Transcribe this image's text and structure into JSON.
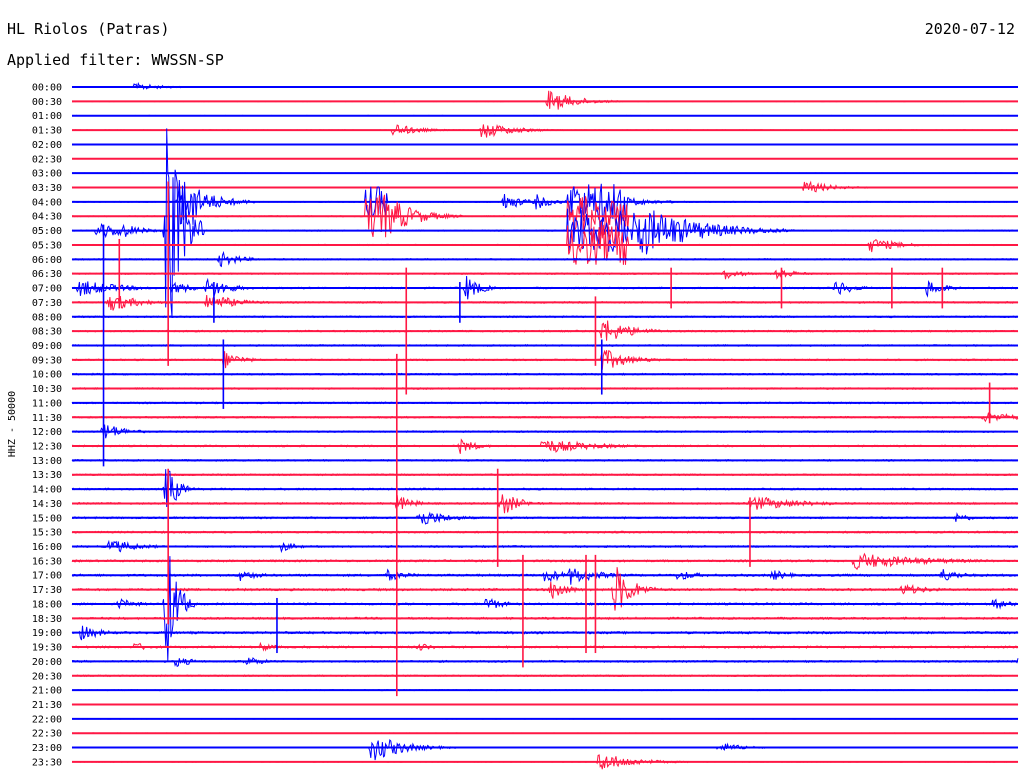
{
  "header": {
    "station": "HL Riolos (Patras)",
    "date": "2020-07-12",
    "filter_label": "Applied filter: WWSSN-SP"
  },
  "chart_data": {
    "type": "line",
    "title": "HL Riolos (Patras)",
    "subtitle": "Applied filter: WWSSN-SP",
    "ylabel": "HHZ - 50000",
    "xlabel": "",
    "date": "2020-07-12",
    "colors": {
      "even_trace": "#0000ff",
      "odd_trace": "#ff1744"
    },
    "rows": [
      "00:00",
      "00:30",
      "01:00",
      "01:30",
      "02:00",
      "02:30",
      "03:00",
      "03:30",
      "04:00",
      "04:30",
      "05:00",
      "05:30",
      "06:00",
      "06:30",
      "07:00",
      "07:30",
      "08:00",
      "08:30",
      "09:00",
      "09:30",
      "10:00",
      "10:30",
      "11:00",
      "11:30",
      "12:00",
      "12:30",
      "13:00",
      "13:30",
      "14:00",
      "14:30",
      "15:00",
      "15:30",
      "16:00",
      "16:30",
      "17:00",
      "17:30",
      "18:00",
      "18:30",
      "19:00",
      "19:30",
      "20:00",
      "20:30",
      "21:00",
      "21:30",
      "22:00",
      "22:30",
      "23:00",
      "23:30"
    ],
    "row_noise_level": [
      0.3,
      0.3,
      0.3,
      0.3,
      0.25,
      0.25,
      0.3,
      0.4,
      0.5,
      0.5,
      0.6,
      0.6,
      0.7,
      0.7,
      0.8,
      0.8,
      0.8,
      0.8,
      0.8,
      0.8,
      0.8,
      0.8,
      0.8,
      0.8,
      0.8,
      0.8,
      0.8,
      0.8,
      0.9,
      0.9,
      0.9,
      0.9,
      0.9,
      1.0,
      1.1,
      1.1,
      1.0,
      1.0,
      1.1,
      1.0,
      0.9,
      0.7,
      0.5,
      0.4,
      0.3,
      0.3,
      0.3,
      0.3
    ],
    "events": [
      {
        "row": 0,
        "minute": 2.0,
        "amp": 4,
        "dur": 0.8
      },
      {
        "row": 1,
        "minute": 15.1,
        "amp": 12,
        "dur": 0.8
      },
      {
        "row": 3,
        "minute": 10.2,
        "amp": 7,
        "dur": 0.7
      },
      {
        "row": 3,
        "minute": 13.0,
        "amp": 9,
        "dur": 0.9
      },
      {
        "row": 7,
        "minute": 23.2,
        "amp": 7,
        "dur": 0.8
      },
      {
        "row": 8,
        "minute": 3.4,
        "amp": 28,
        "dur": 0.8
      },
      {
        "row": 8,
        "minute": 13.7,
        "amp": 10,
        "dur": 0.5
      },
      {
        "row": 8,
        "minute": 14.7,
        "amp": 8,
        "dur": 0.5
      },
      {
        "row": 8,
        "minute": 16.2,
        "amp": 8,
        "dur": 0.5
      },
      {
        "row": 8,
        "minute": 16.8,
        "amp": 10,
        "dur": 1.0
      },
      {
        "row": 9,
        "minute": 10.0,
        "amp": 22,
        "dur": 0.8
      },
      {
        "row": 10,
        "minute": 0.8,
        "amp": 10,
        "dur": 0.8
      },
      {
        "row": 10,
        "minute": 1.5,
        "amp": 9,
        "dur": 0.6
      },
      {
        "row": 10,
        "minute": 3.0,
        "amp": 140,
        "dur": 0.4
      },
      {
        "row": 10,
        "minute": 17.8,
        "amp": 30,
        "dur": 1.7
      },
      {
        "row": 11,
        "minute": 25.3,
        "amp": 8,
        "dur": 0.8
      },
      {
        "row": 12,
        "minute": 4.7,
        "amp": 8,
        "dur": 0.6
      },
      {
        "row": 13,
        "minute": 20.7,
        "amp": 6,
        "dur": 0.5
      },
      {
        "row": 13,
        "minute": 22.3,
        "amp": 8,
        "dur": 0.5
      },
      {
        "row": 14,
        "minute": 0.2,
        "amp": 9,
        "dur": 1.2
      },
      {
        "row": 14,
        "minute": 3.2,
        "amp": 8,
        "dur": 0.5
      },
      {
        "row": 14,
        "minute": 4.3,
        "amp": 12,
        "dur": 0.6
      },
      {
        "row": 14,
        "minute": 12.5,
        "amp": 14,
        "dur": 0.4
      },
      {
        "row": 14,
        "minute": 24.2,
        "amp": 9,
        "dur": 0.5
      },
      {
        "row": 14,
        "minute": 27.1,
        "amp": 9,
        "dur": 0.5
      },
      {
        "row": 15,
        "minute": 1.2,
        "amp": 10,
        "dur": 0.8
      },
      {
        "row": 15,
        "minute": 4.3,
        "amp": 10,
        "dur": 0.8
      },
      {
        "row": 17,
        "minute": 16.8,
        "amp": 14,
        "dur": 0.8
      },
      {
        "row": 19,
        "minute": 4.8,
        "amp": 10,
        "dur": 0.5
      },
      {
        "row": 19,
        "minute": 16.8,
        "amp": 12,
        "dur": 0.8
      },
      {
        "row": 23,
        "minute": 28.9,
        "amp": 6,
        "dur": 1.0
      },
      {
        "row": 24,
        "minute": 1.0,
        "amp": 10,
        "dur": 0.6
      },
      {
        "row": 25,
        "minute": 12.3,
        "amp": 8,
        "dur": 0.5
      },
      {
        "row": 25,
        "minute": 14.9,
        "amp": 8,
        "dur": 1.5
      },
      {
        "row": 28,
        "minute": 3.0,
        "amp": 30,
        "dur": 0.3
      },
      {
        "row": 29,
        "minute": 10.3,
        "amp": 9,
        "dur": 0.5
      },
      {
        "row": 29,
        "minute": 13.6,
        "amp": 14,
        "dur": 0.5
      },
      {
        "row": 29,
        "minute": 21.5,
        "amp": 8,
        "dur": 1.5
      },
      {
        "row": 30,
        "minute": 11.0,
        "amp": 10,
        "dur": 0.8
      },
      {
        "row": 30,
        "minute": 28.0,
        "amp": 5,
        "dur": 0.5
      },
      {
        "row": 32,
        "minute": 1.2,
        "amp": 8,
        "dur": 0.8
      },
      {
        "row": 32,
        "minute": 6.6,
        "amp": 6,
        "dur": 0.5
      },
      {
        "row": 33,
        "minute": 24.8,
        "amp": 9,
        "dur": 2.0
      },
      {
        "row": 34,
        "minute": 5.3,
        "amp": 6,
        "dur": 0.6
      },
      {
        "row": 34,
        "minute": 10.0,
        "amp": 6,
        "dur": 0.6
      },
      {
        "row": 34,
        "minute": 15.0,
        "amp": 8,
        "dur": 0.6
      },
      {
        "row": 34,
        "minute": 15.8,
        "amp": 10,
        "dur": 0.8
      },
      {
        "row": 34,
        "minute": 19.2,
        "amp": 6,
        "dur": 0.6
      },
      {
        "row": 34,
        "minute": 22.2,
        "amp": 6,
        "dur": 0.5
      },
      {
        "row": 34,
        "minute": 27.5,
        "amp": 8,
        "dur": 0.6
      },
      {
        "row": 35,
        "minute": 17.2,
        "amp": 28,
        "dur": 0.5
      },
      {
        "row": 35,
        "minute": 15.2,
        "amp": 14,
        "dur": 0.4
      },
      {
        "row": 35,
        "minute": 26.3,
        "amp": 6,
        "dur": 0.8
      },
      {
        "row": 36,
        "minute": 1.5,
        "amp": 6,
        "dur": 0.5
      },
      {
        "row": 36,
        "minute": 3.0,
        "amp": 70,
        "dur": 0.3
      },
      {
        "row": 36,
        "minute": 13.1,
        "amp": 8,
        "dur": 0.5
      },
      {
        "row": 36,
        "minute": 29.2,
        "amp": 6,
        "dur": 0.5
      },
      {
        "row": 38,
        "minute": 0.3,
        "amp": 8,
        "dur": 0.6
      },
      {
        "row": 39,
        "minute": 2.0,
        "amp": 5,
        "dur": 0.4
      },
      {
        "row": 39,
        "minute": 6.0,
        "amp": 5,
        "dur": 0.4
      },
      {
        "row": 39,
        "minute": 11.0,
        "amp": 5,
        "dur": 0.4
      },
      {
        "row": 40,
        "minute": 3.3,
        "amp": 6,
        "dur": 0.5
      },
      {
        "row": 40,
        "minute": 5.5,
        "amp": 6,
        "dur": 0.5
      },
      {
        "row": 40,
        "minute": 30.0,
        "amp": 5,
        "dur": 0.4
      },
      {
        "row": 46,
        "minute": 9.5,
        "amp": 15,
        "dur": 0.9
      },
      {
        "row": 46,
        "minute": 20.5,
        "amp": 5,
        "dur": 0.8
      },
      {
        "row": 47,
        "minute": 16.7,
        "amp": 10,
        "dur": 1.0
      }
    ],
    "bursts": [
      {
        "row": 8,
        "minute_start": 3.4,
        "minute_end": 4.0,
        "amp": 26
      },
      {
        "row": 8,
        "minute_start": 9.3,
        "minute_end": 10.0,
        "amp": 16
      },
      {
        "row": 9,
        "minute_start": 9.3,
        "minute_end": 10.0,
        "amp": 22
      },
      {
        "row": 8,
        "minute_start": 15.7,
        "minute_end": 17.6,
        "amp": 20
      },
      {
        "row": 9,
        "minute_start": 15.7,
        "minute_end": 17.6,
        "amp": 20
      },
      {
        "row": 10,
        "minute_start": 15.7,
        "minute_end": 17.6,
        "amp": 22
      },
      {
        "row": 11,
        "minute_start": 15.7,
        "minute_end": 17.6,
        "amp": 20
      }
    ],
    "spikes": [
      {
        "minute": 3.05,
        "top_row": 7,
        "bottom_row": 19
      },
      {
        "minute": 3.05,
        "top_row": 27,
        "bottom_row": 37
      },
      {
        "minute": 1.0,
        "top_row": 10,
        "bottom_row": 26
      },
      {
        "minute": 1.5,
        "top_row": 11,
        "bottom_row": 15
      },
      {
        "minute": 4.5,
        "top_row": 14,
        "bottom_row": 16
      },
      {
        "minute": 4.8,
        "top_row": 18,
        "bottom_row": 22
      },
      {
        "minute": 10.6,
        "top_row": 13,
        "bottom_row": 21
      },
      {
        "minute": 12.3,
        "top_row": 14,
        "bottom_row": 16
      },
      {
        "minute": 10.3,
        "top_row": 19,
        "bottom_row": 42
      },
      {
        "minute": 13.5,
        "top_row": 27,
        "bottom_row": 33
      },
      {
        "minute": 14.3,
        "top_row": 33,
        "bottom_row": 40
      },
      {
        "minute": 16.6,
        "top_row": 15,
        "bottom_row": 19
      },
      {
        "minute": 16.8,
        "top_row": 18,
        "bottom_row": 21
      },
      {
        "minute": 16.3,
        "top_row": 33,
        "bottom_row": 39
      },
      {
        "minute": 16.6,
        "top_row": 33,
        "bottom_row": 39
      },
      {
        "minute": 19.0,
        "top_row": 13,
        "bottom_row": 15
      },
      {
        "minute": 21.5,
        "top_row": 29,
        "bottom_row": 33
      },
      {
        "minute": 22.5,
        "top_row": 13,
        "bottom_row": 15
      },
      {
        "minute": 26.0,
        "top_row": 13,
        "bottom_row": 15
      },
      {
        "minute": 27.6,
        "top_row": 13,
        "bottom_row": 15
      },
      {
        "minute": 6.5,
        "top_row": 36,
        "bottom_row": 39
      },
      {
        "minute": 29.1,
        "top_row": 21,
        "bottom_row": 23
      }
    ]
  }
}
